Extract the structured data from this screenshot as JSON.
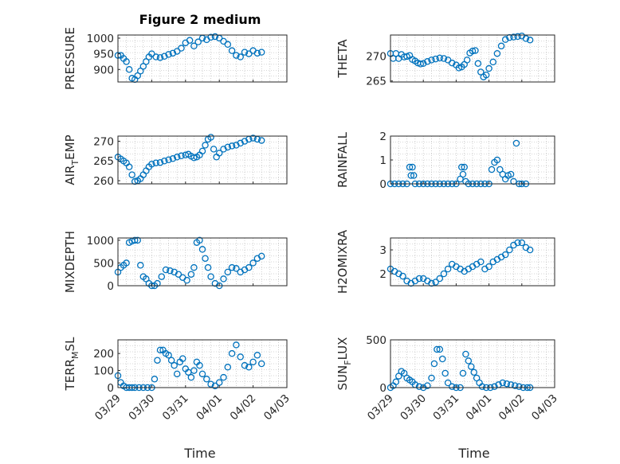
{
  "figure": {
    "title": "Figure 2 medium",
    "xlabel": "Time"
  },
  "colors": {
    "marker": "#0072BD",
    "axis": "#262626",
    "grid": "#b0b0b0"
  },
  "x_ticks": [
    "03/29",
    "03/30",
    "03/31",
    "04/01",
    "04/02",
    "04/03"
  ],
  "chart_data": [
    {
      "type": "scatter",
      "id": "pressure",
      "ylabel": "PRESSURE",
      "ylim": [
        860,
        1010
      ],
      "yticks": [
        900,
        950,
        1000
      ],
      "ytick_labels": [
        "900",
        "950",
        "1000"
      ],
      "x": [
        "03/29 00:00",
        "03/29 02:00",
        "03/29 04:00",
        "03/29 06:00",
        "03/29 08:00",
        "03/29 10:00",
        "03/29 12:00",
        "03/29 14:00",
        "03/29 16:00",
        "03/29 18:00",
        "03/29 20:00",
        "03/29 22:00",
        "03/30 00:00",
        "03/30 03:00",
        "03/30 06:00",
        "03/30 09:00",
        "03/30 12:00",
        "03/30 15:00",
        "03/30 18:00",
        "03/30 21:00",
        "03/31 00:00",
        "03/31 03:00",
        "03/31 06:00",
        "03/31 09:00",
        "03/31 12:00",
        "03/31 15:00",
        "03/31 18:00",
        "03/31 21:00",
        "04/01 00:00",
        "04/01 03:00",
        "04/01 06:00",
        "04/01 09:00",
        "04/01 12:00",
        "04/01 15:00",
        "04/01 18:00",
        "04/01 21:00",
        "04/02 00:00",
        "04/02 03:00",
        "04/02 06:00"
      ],
      "y": [
        945,
        945,
        935,
        925,
        900,
        872,
        868,
        880,
        895,
        910,
        925,
        940,
        950,
        940,
        938,
        942,
        948,
        952,
        958,
        968,
        985,
        993,
        975,
        988,
        1000,
        995,
        1003,
        1005,
        1000,
        990,
        980,
        960,
        945,
        940,
        955,
        950,
        960,
        952,
        955
      ]
    },
    {
      "type": "scatter",
      "id": "theta",
      "ylabel": "THETA",
      "ylim": [
        264.8,
        274.2
      ],
      "yticks": [
        265,
        270
      ],
      "ytick_labels": [
        "265",
        "270"
      ],
      "x": [
        "03/29 00:00",
        "03/29 02:00",
        "03/29 04:00",
        "03/29 06:00",
        "03/29 08:00",
        "03/29 10:00",
        "03/29 12:00",
        "03/29 14:00",
        "03/29 16:00",
        "03/29 18:00",
        "03/29 20:00",
        "03/29 22:00",
        "03/30 00:00",
        "03/30 03:00",
        "03/30 06:00",
        "03/30 09:00",
        "03/30 12:00",
        "03/30 15:00",
        "03/30 18:00",
        "03/30 21:00",
        "03/31 00:00",
        "03/31 02:00",
        "03/31 04:00",
        "03/31 06:00",
        "03/31 08:00",
        "03/31 10:00",
        "03/31 12:00",
        "03/31 14:00",
        "03/31 16:00",
        "03/31 18:00",
        "03/31 20:00",
        "03/31 22:00",
        "04/01 00:00",
        "04/01 03:00",
        "04/01 06:00",
        "04/01 09:00",
        "04/01 12:00",
        "04/01 15:00",
        "04/01 18:00",
        "04/01 21:00",
        "04/02 00:00",
        "04/02 03:00",
        "04/02 06:00"
      ],
      "y": [
        270.5,
        269.5,
        270.5,
        269.5,
        270.3,
        269.8,
        269.9,
        270.1,
        269.3,
        269.0,
        268.6,
        268.4,
        268.5,
        268.9,
        269.2,
        269.4,
        269.6,
        269.5,
        269.2,
        268.6,
        268.2,
        267.6,
        267.8,
        268.3,
        269.2,
        270.6,
        271.0,
        271.1,
        268.5,
        266.8,
        265.8,
        266.2,
        267.5,
        268.8,
        270.5,
        272.0,
        273.3,
        273.7,
        273.8,
        273.9,
        274.0,
        273.5,
        273.2
      ]
    },
    {
      "type": "scatter",
      "id": "air_temp",
      "ylabel": "AIR_TEMP",
      "ylim": [
        259.2,
        271.3
      ],
      "yticks": [
        260,
        265,
        270
      ],
      "ytick_labels": [
        "260",
        "265",
        "270"
      ],
      "x": [
        "03/29 00:00",
        "03/29 02:00",
        "03/29 04:00",
        "03/29 06:00",
        "03/29 08:00",
        "03/29 10:00",
        "03/29 12:00",
        "03/29 14:00",
        "03/29 16:00",
        "03/29 18:00",
        "03/29 20:00",
        "03/29 22:00",
        "03/30 00:00",
        "03/30 03:00",
        "03/30 06:00",
        "03/30 09:00",
        "03/30 12:00",
        "03/30 15:00",
        "03/30 18:00",
        "03/30 21:00",
        "03/31 00:00",
        "03/31 02:00",
        "03/31 04:00",
        "03/31 06:00",
        "03/31 08:00",
        "03/31 10:00",
        "03/31 12:00",
        "03/31 14:00",
        "03/31 16:00",
        "03/31 18:00",
        "03/31 20:00",
        "03/31 22:00",
        "04/01 00:00",
        "04/01 03:00",
        "04/01 06:00",
        "04/01 09:00",
        "04/01 12:00",
        "04/01 15:00",
        "04/01 18:00",
        "04/01 21:00",
        "04/02 00:00",
        "04/02 03:00",
        "04/02 06:00"
      ],
      "y": [
        266.0,
        265.5,
        265.0,
        264.5,
        263.5,
        261.5,
        259.8,
        260.0,
        260.5,
        261.5,
        262.5,
        263.5,
        264.2,
        264.5,
        264.6,
        265.0,
        265.3,
        265.6,
        266.0,
        266.3,
        266.5,
        266.7,
        266.2,
        265.8,
        266.0,
        266.5,
        267.5,
        269.0,
        270.5,
        271.0,
        268.0,
        266.0,
        267.0,
        268.0,
        268.5,
        268.8,
        269.0,
        269.5,
        270.0,
        270.5,
        270.8,
        270.5,
        270.2
      ]
    },
    {
      "type": "scatter",
      "id": "rainfall",
      "ylabel": "RAINFALL",
      "ylim": [
        0,
        2
      ],
      "yticks": [
        0,
        1,
        2
      ],
      "ytick_labels": [
        "0",
        "1",
        "2"
      ],
      "x": [
        "03/29 00:00",
        "03/29 03:00",
        "03/29 06:00",
        "03/29 09:00",
        "03/29 12:00",
        "03/29 14:00",
        "03/29 15:00",
        "03/29 16:00",
        "03/29 17:00",
        "03/29 18:00",
        "03/29 21:00",
        "03/30 00:00",
        "03/30 03:00",
        "03/30 06:00",
        "03/30 09:00",
        "03/30 12:00",
        "03/30 15:00",
        "03/30 18:00",
        "03/30 21:00",
        "03/31 00:00",
        "03/31 03:00",
        "03/31 04:00",
        "03/31 05:00",
        "03/31 06:00",
        "03/31 07:00",
        "03/31 09:00",
        "03/31 12:00",
        "03/31 15:00",
        "03/31 18:00",
        "03/31 21:00",
        "04/01 00:00",
        "04/01 02:00",
        "04/01 04:00",
        "04/01 06:00",
        "04/01 08:00",
        "04/01 10:00",
        "04/01 12:00",
        "04/01 14:00",
        "04/01 16:00",
        "04/01 18:00",
        "04/01 20:00",
        "04/01 22:00",
        "04/02 00:00",
        "04/02 03:00"
      ],
      "y": [
        0,
        0,
        0,
        0,
        0,
        0.7,
        0.35,
        0.7,
        0.35,
        0,
        0,
        0,
        0,
        0,
        0,
        0,
        0,
        0,
        0,
        0,
        0.2,
        0.7,
        0.4,
        0.7,
        0.1,
        0,
        0,
        0,
        0,
        0,
        0,
        0.6,
        0.9,
        1.0,
        0.6,
        0.4,
        0.2,
        0.35,
        0.4,
        0.1,
        1.7,
        0.0,
        0.0,
        0.0
      ]
    },
    {
      "type": "scatter",
      "id": "mixdepth",
      "ylabel": "MIXDEPTH",
      "ylim": [
        0,
        1050
      ],
      "yticks": [
        0,
        500,
        1000
      ],
      "ytick_labels": [
        "0",
        "500",
        "1000"
      ],
      "x": [
        "03/29 00:00",
        "03/29 02:00",
        "03/29 04:00",
        "03/29 06:00",
        "03/29 08:00",
        "03/29 10:00",
        "03/29 12:00",
        "03/29 14:00",
        "03/29 16:00",
        "03/29 18:00",
        "03/29 20:00",
        "03/29 22:00",
        "03/30 00:00",
        "03/30 02:00",
        "03/30 04:00",
        "03/30 07:00",
        "03/30 10:00",
        "03/30 13:00",
        "03/30 16:00",
        "03/30 19:00",
        "03/30 22:00",
        "03/31 01:00",
        "03/31 04:00",
        "03/31 06:00",
        "03/31 08:00",
        "03/31 10:00",
        "03/31 12:00",
        "03/31 14:00",
        "03/31 16:00",
        "03/31 18:00",
        "03/31 21:00",
        "04/01 00:00",
        "04/01 03:00",
        "04/01 06:00",
        "04/01 09:00",
        "04/01 12:00",
        "04/01 15:00",
        "04/01 18:00",
        "04/01 21:00",
        "04/02 00:00",
        "04/02 03:00",
        "04/02 06:00"
      ],
      "y": [
        300,
        400,
        450,
        500,
        950,
        980,
        1000,
        1000,
        450,
        200,
        150,
        50,
        0,
        0,
        50,
        200,
        350,
        330,
        300,
        250,
        180,
        120,
        250,
        400,
        950,
        1000,
        800,
        600,
        400,
        200,
        50,
        0,
        150,
        300,
        400,
        380,
        300,
        350,
        400,
        500,
        600,
        650
      ]
    },
    {
      "type": "scatter",
      "id": "h2omixra",
      "ylabel": "H2OMIXRA",
      "ylim": [
        1.5,
        3.5
      ],
      "yticks": [
        2,
        3
      ],
      "ytick_labels": [
        "2",
        "3"
      ],
      "x": [
        "03/29 00:00",
        "03/29 03:00",
        "03/29 06:00",
        "03/29 09:00",
        "03/29 12:00",
        "03/29 15:00",
        "03/29 18:00",
        "03/29 21:00",
        "03/30 00:00",
        "03/30 03:00",
        "03/30 06:00",
        "03/30 09:00",
        "03/30 12:00",
        "03/30 15:00",
        "03/30 18:00",
        "03/30 21:00",
        "03/31 00:00",
        "03/31 03:00",
        "03/31 06:00",
        "03/31 09:00",
        "03/31 12:00",
        "03/31 15:00",
        "03/31 18:00",
        "03/31 21:00",
        "04/01 00:00",
        "04/01 03:00",
        "04/01 06:00",
        "04/01 09:00",
        "04/01 12:00",
        "04/01 15:00",
        "04/01 18:00",
        "04/01 21:00",
        "04/02 00:00",
        "04/02 03:00",
        "04/02 06:00"
      ],
      "y": [
        2.2,
        2.1,
        2.0,
        1.9,
        1.7,
        1.6,
        1.7,
        1.8,
        1.8,
        1.7,
        1.6,
        1.65,
        1.8,
        2.0,
        2.2,
        2.4,
        2.3,
        2.2,
        2.1,
        2.2,
        2.3,
        2.4,
        2.5,
        2.2,
        2.3,
        2.5,
        2.6,
        2.7,
        2.8,
        3.0,
        3.2,
        3.3,
        3.3,
        3.1,
        3.0
      ]
    },
    {
      "type": "scatter",
      "id": "terr_msl",
      "ylabel": "TERR_MSL",
      "ylim": [
        0,
        280
      ],
      "yticks": [
        0,
        100,
        200
      ],
      "ytick_labels": [
        "0",
        "100",
        "200"
      ],
      "x": [
        "03/29 00:00",
        "03/29 02:00",
        "03/29 04:00",
        "03/29 06:00",
        "03/29 08:00",
        "03/29 10:00",
        "03/29 12:00",
        "03/29 15:00",
        "03/29 18:00",
        "03/29 21:00",
        "03/30 00:00",
        "03/30 02:00",
        "03/30 04:00",
        "03/30 06:00",
        "03/30 08:00",
        "03/30 10:00",
        "03/30 12:00",
        "03/30 14:00",
        "03/30 16:00",
        "03/30 18:00",
        "03/30 20:00",
        "03/30 22:00",
        "03/31 00:00",
        "03/31 02:00",
        "03/31 04:00",
        "03/31 06:00",
        "03/31 08:00",
        "03/31 10:00",
        "03/31 12:00",
        "03/31 15:00",
        "03/31 18:00",
        "03/31 21:00",
        "04/01 00:00",
        "04/01 03:00",
        "04/01 06:00",
        "04/01 09:00",
        "04/01 12:00",
        "04/01 15:00",
        "04/01 18:00",
        "04/01 21:00",
        "04/02 00:00",
        "04/02 03:00",
        "04/02 06:00"
      ],
      "y": [
        70,
        30,
        10,
        0,
        0,
        0,
        0,
        0,
        0,
        0,
        0,
        50,
        160,
        220,
        220,
        200,
        190,
        160,
        130,
        80,
        150,
        170,
        110,
        90,
        60,
        100,
        150,
        130,
        80,
        50,
        20,
        10,
        30,
        60,
        120,
        200,
        250,
        180,
        130,
        120,
        150,
        190,
        140
      ]
    },
    {
      "type": "scatter",
      "id": "sun_flux",
      "ylabel": "SUN_FLUX",
      "ylim": [
        0,
        500
      ],
      "yticks": [
        0,
        500
      ],
      "ytick_labels": [
        "0",
        "500"
      ],
      "x": [
        "03/29 00:00",
        "03/29 02:00",
        "03/29 04:00",
        "03/29 06:00",
        "03/29 08:00",
        "03/29 10:00",
        "03/29 12:00",
        "03/29 14:00",
        "03/29 16:00",
        "03/29 18:00",
        "03/29 21:00",
        "03/30 00:00",
        "03/30 03:00",
        "03/30 06:00",
        "03/30 08:00",
        "03/30 10:00",
        "03/30 12:00",
        "03/30 14:00",
        "03/30 16:00",
        "03/30 18:00",
        "03/30 21:00",
        "03/31 00:00",
        "03/31 03:00",
        "03/31 05:00",
        "03/31 07:00",
        "03/31 09:00",
        "03/31 11:00",
        "03/31 13:00",
        "03/31 15:00",
        "03/31 17:00",
        "03/31 19:00",
        "03/31 22:00",
        "04/01 01:00",
        "04/01 04:00",
        "04/01 07:00",
        "04/01 10:00",
        "04/01 13:00",
        "04/01 16:00",
        "04/01 19:00",
        "04/01 22:00",
        "04/02 01:00",
        "04/02 04:00",
        "04/02 06:00"
      ],
      "y": [
        0,
        20,
        60,
        120,
        170,
        150,
        100,
        80,
        60,
        30,
        10,
        0,
        20,
        100,
        250,
        400,
        400,
        300,
        150,
        50,
        10,
        0,
        0,
        150,
        350,
        280,
        220,
        160,
        100,
        50,
        10,
        0,
        0,
        10,
        30,
        50,
        40,
        30,
        20,
        10,
        0,
        0,
        0
      ]
    }
  ]
}
